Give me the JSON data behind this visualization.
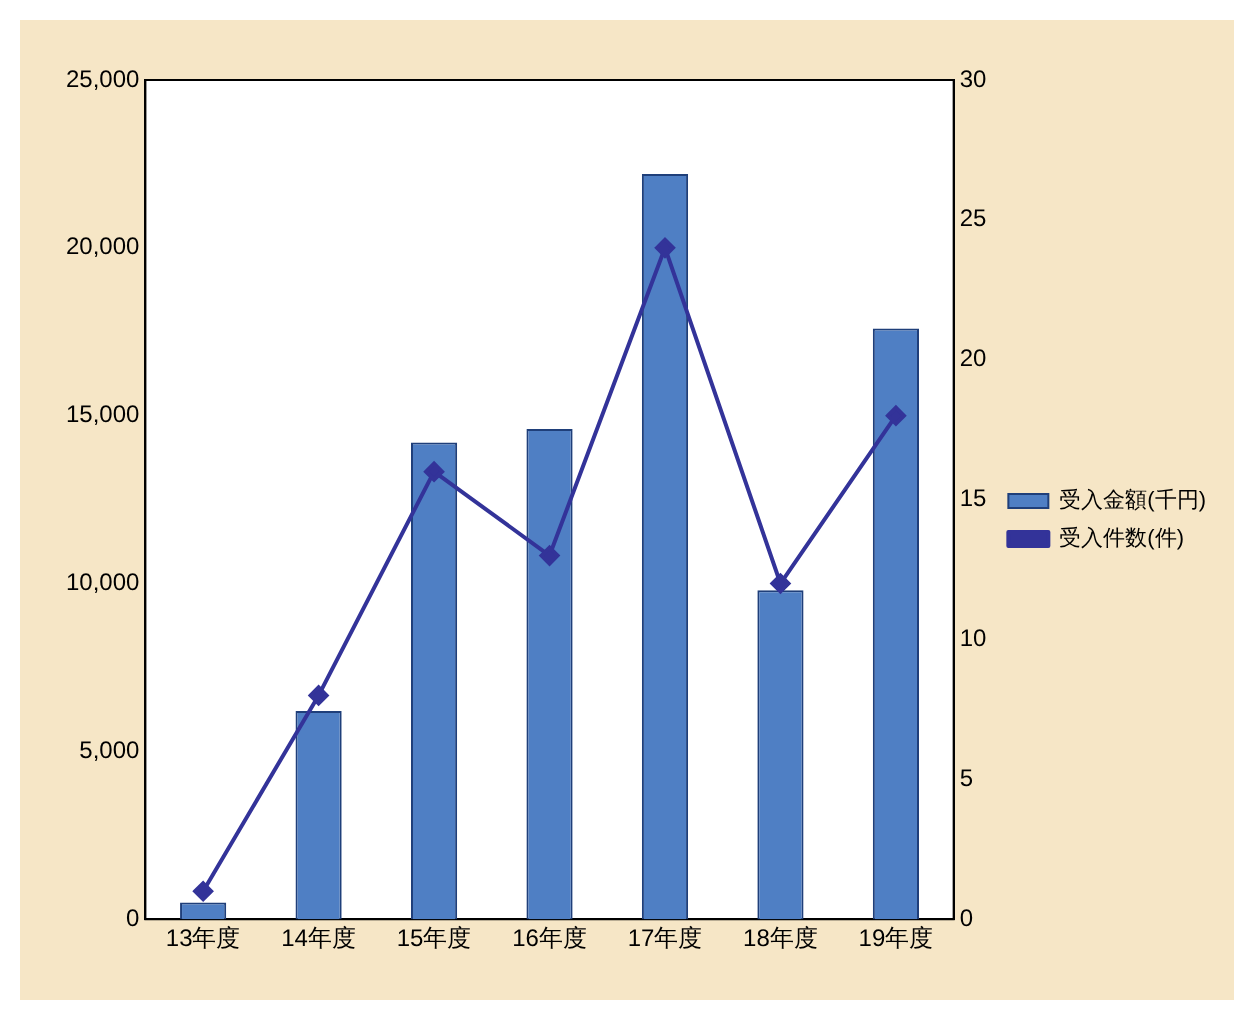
{
  "chart_data": {
    "type": "bar",
    "categories": [
      "13年度",
      "14年度",
      "15年度",
      "16年度",
      "17年度",
      "18年度",
      "19年度"
    ],
    "series": [
      {
        "name": "受入金額(千円)",
        "color": "#4f7fc4",
        "values": [
          500,
          6200,
          14200,
          14600,
          22200,
          9800,
          17600
        ]
      },
      {
        "name": "受入件数(件)",
        "type": "line",
        "axis": "y2",
        "color": "#333399",
        "values": [
          1,
          8,
          16,
          13,
          24,
          12,
          18
        ]
      }
    ],
    "ylim": [
      0,
      25000
    ],
    "yticks": [
      {
        "value": 0,
        "label": "0"
      },
      {
        "value": 5000,
        "label": "5,000"
      },
      {
        "value": 10000,
        "label": "10,000"
      },
      {
        "value": 15000,
        "label": "15,000"
      },
      {
        "value": 20000,
        "label": "20,000"
      },
      {
        "value": 25000,
        "label": "25,000"
      }
    ],
    "y2lim": [
      0,
      30
    ],
    "y2ticks": [
      0,
      5,
      10,
      15,
      20,
      25,
      30
    ],
    "grid": false,
    "legend": "right",
    "marker": "diamond",
    "line_style": "solid"
  }
}
